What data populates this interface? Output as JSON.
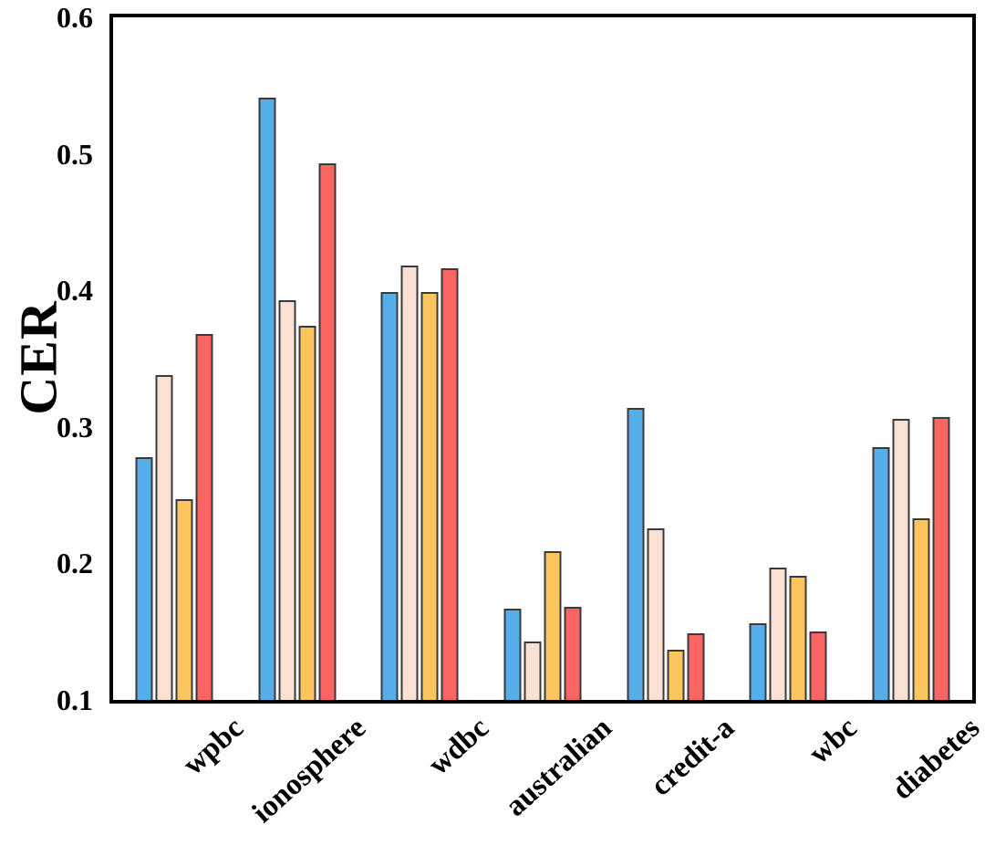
{
  "chart_data": {
    "type": "bar",
    "ylabel": "CER",
    "xlabel": "",
    "ylim": [
      0.1,
      0.6
    ],
    "yticks": [
      0.1,
      0.2,
      0.3,
      0.4,
      0.5,
      0.6
    ],
    "grid": false,
    "legend_position": "none",
    "bar_edge_color": "#3a3a3a",
    "categories": [
      "wpbc",
      "ionosphere",
      "wdbc",
      "australian",
      "credit-a",
      "wbc",
      "diabetes"
    ],
    "series": [
      {
        "name": "series-1-blue",
        "color": "#54AEE9",
        "values": [
          0.278,
          0.541,
          0.399,
          0.167,
          0.314,
          0.156,
          0.285
        ]
      },
      {
        "name": "series-2-pink",
        "color": "#FBE0D4",
        "values": [
          0.338,
          0.393,
          0.418,
          0.143,
          0.226,
          0.197,
          0.306
        ]
      },
      {
        "name": "series-3-orange",
        "color": "#FCC55E",
        "values": [
          0.247,
          0.374,
          0.399,
          0.209,
          0.137,
          0.191,
          0.233
        ]
      },
      {
        "name": "series-4-red",
        "color": "#FA6462",
        "values": [
          0.368,
          0.493,
          0.416,
          0.168,
          0.149,
          0.15,
          0.307
        ]
      }
    ]
  }
}
